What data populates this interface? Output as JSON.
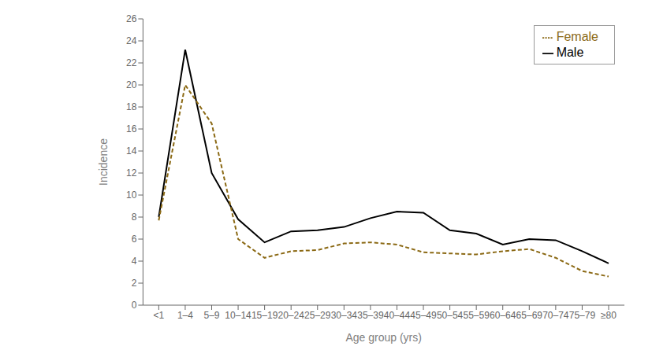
{
  "chart_data": {
    "type": "line",
    "categories": [
      "<1",
      "1–4",
      "5–9",
      "10–14",
      "15–19",
      "20–24",
      "25–29",
      "30–34",
      "35–39",
      "40–44",
      "45–49",
      "50–54",
      "55–59",
      "60–64",
      "65–69",
      "70–74",
      "75–79",
      "≥80"
    ],
    "series": [
      {
        "name": "Male",
        "color": "#000000",
        "line_style": "solid",
        "values": [
          8.0,
          23.2,
          12.0,
          7.8,
          5.7,
          6.7,
          6.8,
          7.1,
          7.9,
          8.5,
          8.4,
          6.8,
          6.5,
          5.5,
          6.0,
          5.9,
          4.9,
          3.8
        ]
      },
      {
        "name": "Female",
        "color": "#8B6914",
        "line_style": "dashed",
        "values": [
          7.7,
          20.0,
          16.5,
          6.0,
          4.3,
          4.9,
          5.0,
          5.6,
          5.7,
          5.5,
          4.8,
          4.7,
          4.6,
          4.9,
          5.1,
          4.3,
          3.1,
          2.6
        ]
      }
    ],
    "xlabel": "Age group (yrs)",
    "ylabel": "Incidence",
    "ylim": [
      0,
      26
    ],
    "yticks": [
      0,
      2,
      4,
      6,
      8,
      10,
      12,
      14,
      16,
      18,
      20,
      22,
      24,
      26
    ],
    "grid": false,
    "legend": "upper right"
  }
}
